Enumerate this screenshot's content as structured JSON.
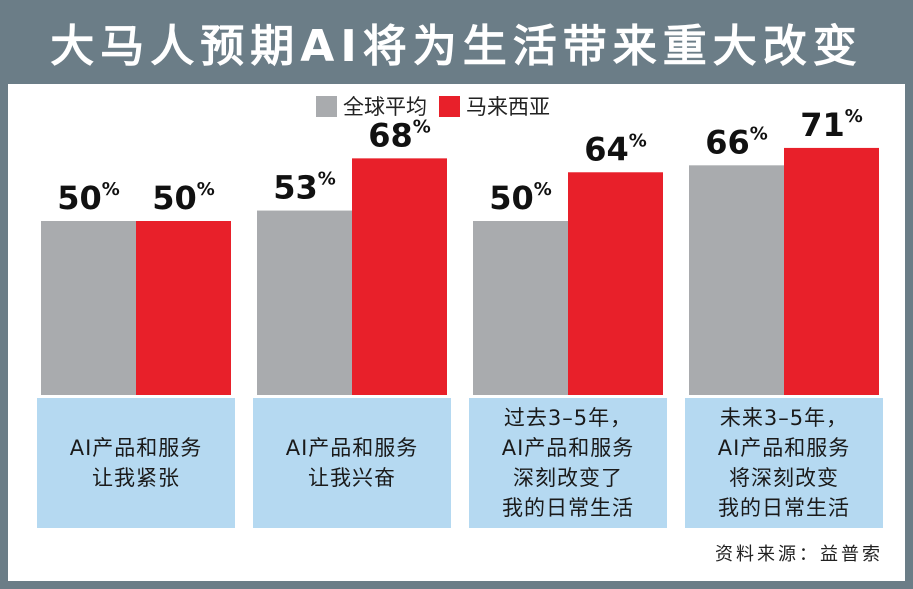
{
  "title": "大马人预期AI将为生活带来重大改变",
  "source": "资料来源：益普索",
  "colors": {
    "global": "#a9abae",
    "malaysia": "#e8202a",
    "header": "#6b7d87",
    "label_box": "#b5d9f1"
  },
  "chart_data": {
    "type": "bar",
    "title": "大马人预期AI将为生活带来重大改变",
    "categories": [
      "AI产品和服务\n让我紧张",
      "AI产品和服务\n让我兴奋",
      "过去3–5年，\nAI产品和服务\n深刻改变了\n我的日常生活",
      "未来3–5年，\nAI产品和服务\n将深刻改变\n我的日常生活"
    ],
    "series": [
      {
        "name": "全球平均",
        "values": [
          50,
          53,
          50,
          66
        ]
      },
      {
        "name": "马来西亚",
        "values": [
          50,
          68,
          64,
          71
        ]
      }
    ],
    "unit": "%",
    "ylim": [
      0,
      100
    ],
    "legend_position": "top-center",
    "grid": false
  }
}
